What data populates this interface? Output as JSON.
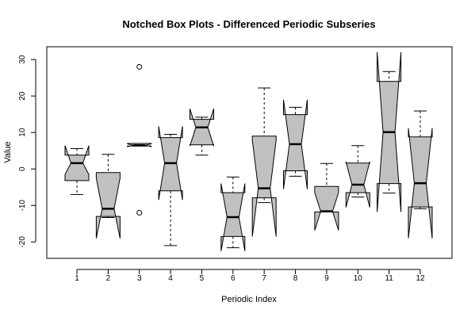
{
  "chart_data": {
    "type": "notched-boxplot",
    "title": "Notched Box Plots - Differenced Periodic Subseries",
    "xlabel": "Periodic Index",
    "ylabel": "Value",
    "ylim": [
      -24.5,
      33.5
    ],
    "yticks": [
      -20,
      -10,
      0,
      10,
      20,
      30
    ],
    "categories": [
      "1",
      "2",
      "3",
      "4",
      "5",
      "6",
      "7",
      "8",
      "9",
      "10",
      "11",
      "12"
    ],
    "box_fill": "#c0c0c0",
    "boxes": [
      {
        "x": "1",
        "whisker_low": -7.0,
        "q1": -3.2,
        "median": 1.6,
        "q3": 3.8,
        "whisker_high": 5.6,
        "notch_low": -1.5,
        "notch_high": 6.4,
        "outliers": []
      },
      {
        "x": "2",
        "whisker_low": -13.3,
        "q1": -13.0,
        "median": -10.9,
        "q3": -1.0,
        "whisker_high": 4.0,
        "notch_low": -19.0,
        "notch_high": -2.5,
        "outliers": []
      },
      {
        "x": "3",
        "whisker_low": 6.3,
        "q1": 6.3,
        "median": 6.5,
        "q3": 7.0,
        "whisker_high": 7.0,
        "notch_low": 6.1,
        "notch_high": 6.9,
        "outliers": [
          28.0,
          -12.0
        ]
      },
      {
        "x": "4",
        "whisker_low": -21.0,
        "q1": -6.0,
        "median": 1.6,
        "q3": 8.6,
        "whisker_high": 9.5,
        "notch_low": -8.5,
        "notch_high": 11.7,
        "outliers": []
      },
      {
        "x": "5",
        "whisker_low": 3.8,
        "q1": 6.6,
        "median": 11.4,
        "q3": 13.6,
        "whisker_high": 14.2,
        "notch_low": 6.3,
        "notch_high": 16.5,
        "outliers": []
      },
      {
        "x": "6",
        "whisker_low": -21.6,
        "q1": -18.5,
        "median": -13.2,
        "q3": -6.5,
        "whisker_high": -2.2,
        "notch_low": -22.5,
        "notch_high": -4.0,
        "outliers": []
      },
      {
        "x": "7",
        "whisker_low": -9.2,
        "q1": -7.9,
        "median": -5.3,
        "q3": 9.0,
        "whisker_high": 22.2,
        "notch_low": -18.5,
        "notch_high": 7.9,
        "outliers": []
      },
      {
        "x": "8",
        "whisker_low": -2.0,
        "q1": -0.5,
        "median": 6.8,
        "q3": 14.9,
        "whisker_high": 16.9,
        "notch_low": -5.5,
        "notch_high": 19.0,
        "outliers": []
      },
      {
        "x": "9",
        "whisker_low": -11.8,
        "q1": -11.8,
        "median": -11.6,
        "q3": -4.8,
        "whisker_high": 1.5,
        "notch_low": -16.8,
        "notch_high": -6.5,
        "outliers": []
      },
      {
        "x": "10",
        "whisker_low": -7.7,
        "q1": -6.5,
        "median": -4.3,
        "q3": 1.6,
        "whisker_high": 6.4,
        "notch_low": -10.5,
        "notch_high": 2.0,
        "outliers": []
      },
      {
        "x": "11",
        "whisker_low": -6.6,
        "q1": -4.0,
        "median": 10.1,
        "q3": 24.0,
        "whisker_high": 26.7,
        "notch_low": -11.8,
        "notch_high": 32.0,
        "outliers": []
      },
      {
        "x": "12",
        "whisker_low": -10.9,
        "q1": -10.4,
        "median": -3.9,
        "q3": 8.8,
        "whisker_high": 15.9,
        "notch_low": -19.0,
        "notch_high": 11.2,
        "outliers": []
      }
    ]
  }
}
